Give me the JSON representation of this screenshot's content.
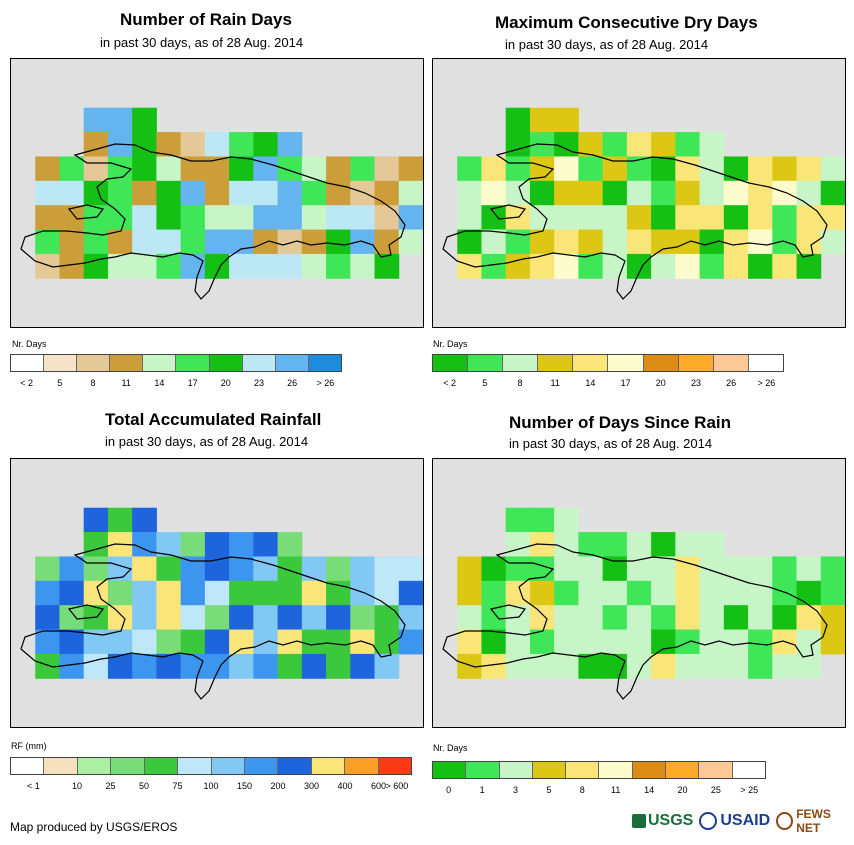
{
  "panels": [
    {
      "id": "rain-days",
      "title": "Number of Rain Days",
      "subtitle": "in past 30 days, as of 28 Aug. 2014",
      "legend_unit": "Nr. Days",
      "legend_colors": [
        "#ffffff",
        "#f5e4c8",
        "#e4c898",
        "#cc9e3a",
        "#c8f5c8",
        "#3ee658",
        "#14c014",
        "#bce8f5",
        "#64b4f0",
        "#1e8cdc"
      ],
      "legend_labels": [
        "< 2",
        "5",
        "8",
        "11",
        "14",
        "17",
        "20",
        "23",
        "26",
        "> 26"
      ],
      "legend_label_mode": "center"
    },
    {
      "id": "dry-days",
      "title": "Maximum Consecutive Dry Days",
      "subtitle": "in past 30 days, as of 28 Aug. 2014",
      "legend_unit": "Nr. Days",
      "legend_colors": [
        "#14c014",
        "#3ee658",
        "#c8f5c8",
        "#dcc814",
        "#fae678",
        "#fcfccc",
        "#dc8c14",
        "#fcaa28",
        "#fcc896",
        "#ffffff"
      ],
      "legend_labels": [
        "< 2",
        "5",
        "8",
        "11",
        "14",
        "17",
        "20",
        "23",
        "26",
        "> 26"
      ],
      "legend_label_mode": "center"
    },
    {
      "id": "rainfall",
      "title": "Total Accumulated Rainfall",
      "subtitle": "in past 30 days, as of 28 Aug. 2014",
      "legend_unit": "RF (mm)",
      "legend_colors": [
        "#ffffff",
        "#f5e1be",
        "#aaf0a0",
        "#78dc78",
        "#3cc83c",
        "#bee8f8",
        "#82c8f5",
        "#3c96f0",
        "#1e64dc",
        "#fae678",
        "#faa028",
        "#fa3c14"
      ],
      "legend_labels": [
        "< 1",
        "10",
        "25",
        "50",
        "75",
        "100",
        "150",
        "200",
        "300",
        "400",
        "600",
        "> 600"
      ],
      "legend_label_mode": "boundary"
    },
    {
      "id": "since-rain",
      "title": "Number of Days Since Rain",
      "subtitle": "in past 30 days, as of 28 Aug. 2014",
      "legend_unit": "Nr. Days",
      "legend_colors": [
        "#14c014",
        "#3ee658",
        "#c8f5c8",
        "#dcc814",
        "#fae678",
        "#fcfccc",
        "#dc8c14",
        "#fcaa28",
        "#fcc896",
        "#ffffff"
      ],
      "legend_labels": [
        "0",
        "1",
        "3",
        "5",
        "8",
        "11",
        "14",
        "20",
        "25",
        "> 25"
      ],
      "legend_label_mode": "center"
    }
  ],
  "footer": {
    "credit": "Map produced by USGS/EROS",
    "logo_usgs": "USGS",
    "logo_usaid": "USAID",
    "logo_fews": "FEWS NET"
  }
}
